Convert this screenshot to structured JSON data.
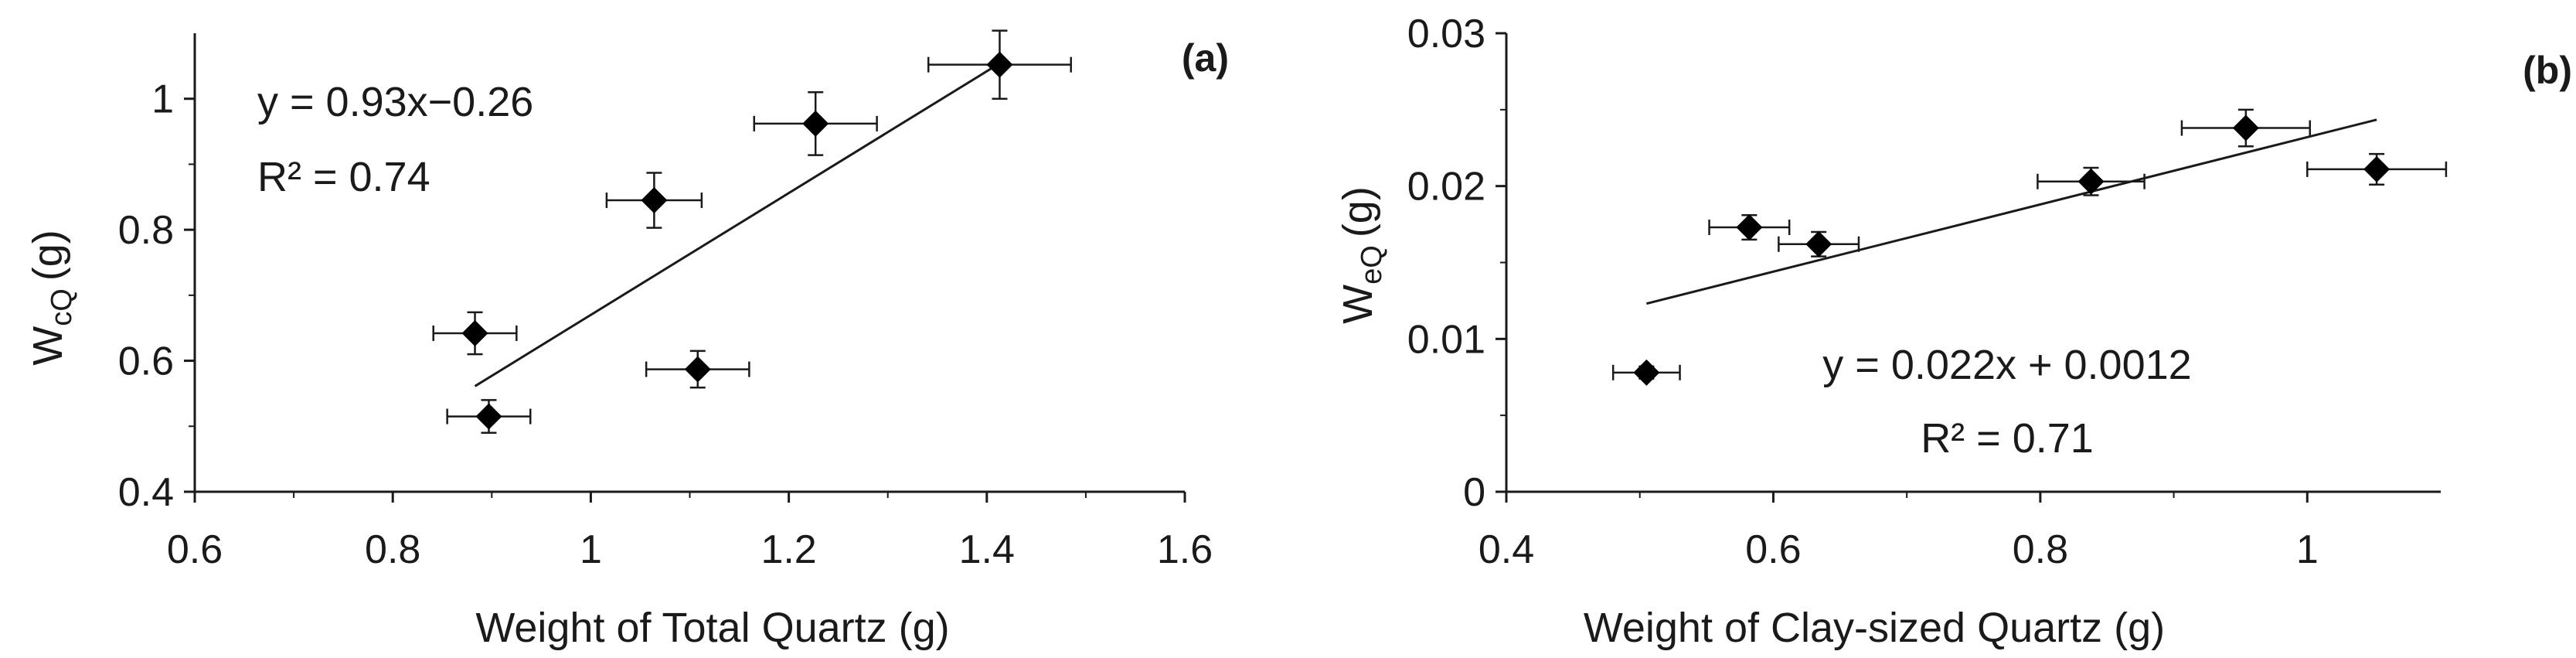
{
  "chart_data": [
    {
      "type": "scatter",
      "panel_label": "(a)",
      "xlabel": "Weight of Total Quartz (g)",
      "ylabel": "W",
      "ylabel_subscript": "cQ",
      "ylabel_suffix": "(g)",
      "xlim": [
        0.6,
        1.6
      ],
      "ylim": [
        0.4,
        1.1
      ],
      "xticks": [
        0.6,
        0.8,
        1.0,
        1.2,
        1.4,
        1.6
      ],
      "xtick_labels": [
        "0.6",
        "0.8",
        "1",
        "1.2",
        "1.4",
        "1.6"
      ],
      "yticks": [
        0.4,
        0.6,
        0.8,
        1.0
      ],
      "ytick_labels": [
        "0.4",
        "0.6",
        "0.8",
        "1"
      ],
      "grid": false,
      "points": [
        {
          "x": 0.883,
          "y": 0.642,
          "xerr": 0.042,
          "yerr": 0.032
        },
        {
          "x": 0.897,
          "y": 0.515,
          "xerr": 0.042,
          "yerr": 0.025
        },
        {
          "x": 1.064,
          "y": 0.845,
          "xerr": 0.048,
          "yerr": 0.042
        },
        {
          "x": 1.108,
          "y": 0.587,
          "xerr": 0.052,
          "yerr": 0.028
        },
        {
          "x": 1.227,
          "y": 0.962,
          "xerr": 0.062,
          "yerr": 0.048
        },
        {
          "x": 1.413,
          "y": 1.052,
          "xerr": 0.072,
          "yerr": 0.052
        }
      ],
      "fit": {
        "slope": 0.93,
        "intercept": -0.26,
        "x_range": [
          0.883,
          1.413
        ]
      },
      "equation": "y = 0.93x−0.26",
      "r2": "R² = 0.74"
    },
    {
      "type": "scatter",
      "panel_label": "(b)",
      "xlabel": "Weight of Clay-sized Quartz (g)",
      "ylabel": "W",
      "ylabel_subscript": "eQ",
      "ylabel_suffix": "(g)",
      "xlim": [
        0.4,
        1.1
      ],
      "ylim": [
        0,
        0.03
      ],
      "xticks": [
        0.4,
        0.6,
        0.8,
        1.0
      ],
      "xtick_labels": [
        "0.4",
        "0.6",
        "0.8",
        "1"
      ],
      "yticks": [
        0,
        0.01,
        0.02,
        0.03
      ],
      "ytick_labels": [
        "0",
        "0.01",
        "0.02",
        "0.03"
      ],
      "grid": false,
      "points": [
        {
          "x": 0.505,
          "y": 0.0078,
          "xerr": 0.025,
          "yerr": 0.0004
        },
        {
          "x": 0.582,
          "y": 0.0173,
          "xerr": 0.03,
          "yerr": 0.0008
        },
        {
          "x": 0.634,
          "y": 0.0162,
          "xerr": 0.03,
          "yerr": 0.0008
        },
        {
          "x": 0.838,
          "y": 0.0203,
          "xerr": 0.04,
          "yerr": 0.0009
        },
        {
          "x": 0.954,
          "y": 0.0238,
          "xerr": 0.048,
          "yerr": 0.0012
        },
        {
          "x": 1.052,
          "y": 0.0211,
          "xerr": 0.052,
          "yerr": 0.001
        }
      ],
      "fit": {
        "slope": 0.022,
        "intercept": 0.0012,
        "x_range": [
          0.505,
          1.052
        ]
      },
      "equation": "y = 0.022x + 0.0012",
      "r2": "R² = 0.71"
    }
  ]
}
